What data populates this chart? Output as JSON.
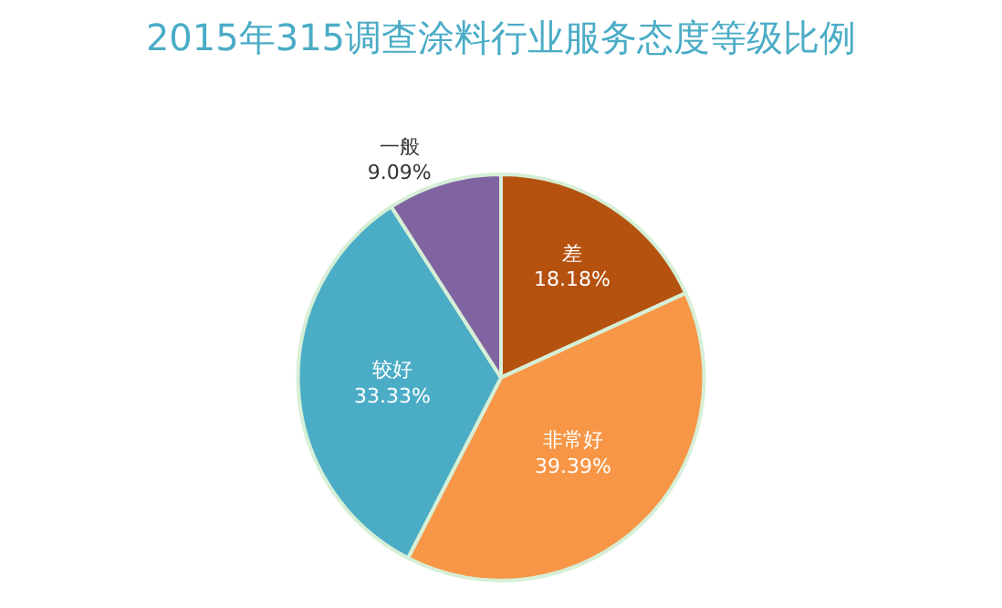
{
  "chart_data": {
    "type": "pie",
    "title": "2015年315调查涂料行业服务态度等级比例",
    "categories": [
      "差",
      "非常好",
      "较好",
      "一般"
    ],
    "values": [
      18.18,
      39.39,
      33.33,
      9.09
    ],
    "value_labels": [
      "18.18%",
      "39.39%",
      "33.33%",
      "9.09%"
    ],
    "colors": [
      "#b5520f",
      "#f79646",
      "#4bacc6",
      "#8064a2"
    ],
    "legend": false
  }
}
